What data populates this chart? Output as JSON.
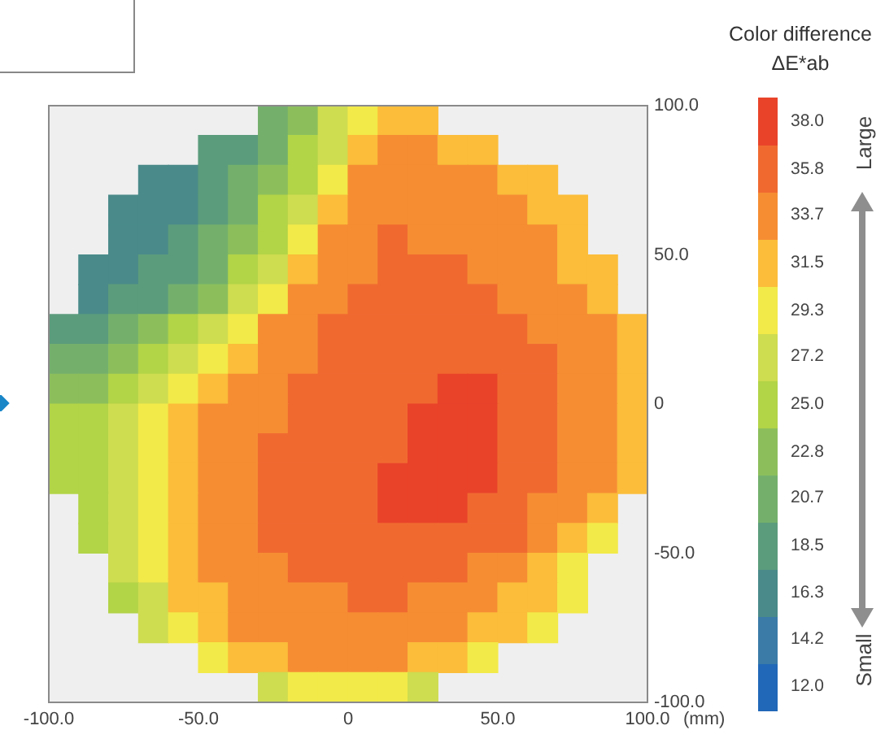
{
  "chart_data": {
    "type": "scatter",
    "title": "Color difference",
    "clabel": "ΔE*ab",
    "xlabel": "(mm)",
    "marker": "square",
    "series": [
      {
        "x": [
          -25,
          -15,
          -5,
          5,
          15,
          25,
          -45,
          -35,
          -25,
          -15,
          -5,
          5,
          15,
          25,
          35,
          45,
          -65,
          -55,
          -45,
          -35,
          -25,
          -15,
          -5,
          5,
          15,
          25,
          35,
          45,
          55,
          65,
          -75,
          -65,
          -55,
          -45,
          -35,
          -25,
          -15,
          -5,
          5,
          15,
          25,
          35,
          45,
          55,
          65,
          75,
          -75,
          -65,
          -55,
          -45,
          -35,
          -25,
          -15,
          -5,
          5,
          15,
          25,
          35,
          45,
          55,
          65,
          75,
          -85,
          -75,
          -65,
          -55,
          -45,
          -35,
          -25,
          -15,
          -5,
          5,
          15,
          25,
          35,
          45,
          55,
          65,
          75,
          85,
          -85,
          -75,
          -65,
          -55,
          -45,
          -35,
          -25,
          -15,
          -5,
          5,
          15,
          25,
          35,
          45,
          55,
          65,
          75,
          85,
          -95,
          -85,
          -75,
          -65,
          -55,
          -45,
          -35,
          -25,
          -15,
          -5,
          5,
          15,
          25,
          35,
          45,
          55,
          65,
          75,
          85,
          95,
          -95,
          -85,
          -75,
          -65,
          -55,
          -45,
          -35,
          -25,
          -15,
          -5,
          5,
          15,
          25,
          35,
          45,
          55,
          65,
          75,
          85,
          95,
          -95,
          -85,
          -75,
          -65,
          -55,
          -45,
          -35,
          -25,
          -15,
          -5,
          5,
          15,
          25,
          35,
          45,
          55,
          65,
          75,
          85,
          95,
          -95,
          -85,
          -75,
          -65,
          -55,
          -45,
          -35,
          -25,
          -15,
          -5,
          5,
          15,
          25,
          35,
          45,
          55,
          65,
          75,
          85,
          95,
          -95,
          -85,
          -75,
          -65,
          -55,
          -45,
          -35,
          -25,
          -15,
          -5,
          5,
          15,
          25,
          35,
          45,
          55,
          65,
          75,
          85,
          95,
          -95,
          -85,
          -75,
          -65,
          -55,
          -45,
          -35,
          -25,
          -15,
          -5,
          5,
          15,
          25,
          35,
          45,
          55,
          65,
          75,
          85,
          95,
          -85,
          -75,
          -65,
          -55,
          -45,
          -35,
          -25,
          -15,
          -5,
          5,
          15,
          25,
          35,
          45,
          55,
          65,
          75,
          85,
          -85,
          -75,
          -65,
          -55,
          -45,
          -35,
          -25,
          -15,
          -5,
          5,
          15,
          25,
          35,
          45,
          55,
          65,
          75,
          85,
          -75,
          -65,
          -55,
          -45,
          -35,
          -25,
          -15,
          -5,
          5,
          15,
          25,
          35,
          45,
          55,
          65,
          75,
          -75,
          -65,
          -55,
          -45,
          -35,
          -25,
          -15,
          -5,
          5,
          15,
          25,
          35,
          45,
          55,
          65,
          75,
          -65,
          -55,
          -45,
          -35,
          -25,
          -15,
          -5,
          5,
          15,
          25,
          35,
          45,
          55,
          65,
          -45,
          -35,
          -25,
          -15,
          -5,
          5,
          15,
          25,
          35,
          45,
          -25,
          -15,
          -5,
          5,
          15,
          25
        ],
        "values": [
          95,
          95,
          95,
          95,
          95,
          95,
          85,
          85,
          85,
          85,
          85,
          85,
          85,
          85,
          85,
          85,
          75,
          75,
          75,
          75,
          75,
          75,
          75,
          75,
          75,
          75,
          75,
          75,
          75,
          75,
          65,
          65,
          65,
          65,
          65,
          65,
          65,
          65,
          65,
          65,
          65,
          65,
          65,
          65,
          65,
          65,
          55,
          55,
          55,
          55,
          55,
          55,
          55,
          55,
          55,
          55,
          55,
          55,
          55,
          55,
          55,
          55,
          45,
          45,
          45,
          45,
          45,
          45,
          45,
          45,
          45,
          45,
          45,
          45,
          45,
          45,
          45,
          45,
          45,
          45,
          35,
          35,
          35,
          35,
          35,
          35,
          35,
          35,
          35,
          35,
          35,
          35,
          35,
          35,
          35,
          35,
          35,
          35,
          25,
          25,
          25,
          25,
          25,
          25,
          25,
          25,
          25,
          25,
          25,
          25,
          25,
          25,
          25,
          25,
          25,
          25,
          25,
          25,
          15,
          15,
          15,
          15,
          15,
          15,
          15,
          15,
          15,
          15,
          15,
          15,
          15,
          15,
          15,
          15,
          15,
          15,
          15,
          15,
          5,
          5,
          5,
          5,
          5,
          5,
          5,
          5,
          5,
          5,
          5,
          5,
          5,
          5,
          5,
          5,
          5,
          5,
          5,
          5,
          -5,
          -5,
          -5,
          -5,
          -5,
          -5,
          -5,
          -5,
          -5,
          -5,
          -5,
          -5,
          -5,
          -5,
          -5,
          -5,
          -5,
          -5,
          -5,
          -5,
          -15,
          -15,
          -15,
          -15,
          -15,
          -15,
          -15,
          -15,
          -15,
          -15,
          -15,
          -15,
          -15,
          -15,
          -15,
          -15,
          -15,
          -15,
          -15,
          -15,
          -25,
          -25,
          -25,
          -25,
          -25,
          -25,
          -25,
          -25,
          -25,
          -25,
          -25,
          -25,
          -25,
          -25,
          -25,
          -25,
          -25,
          -25,
          -25,
          -25,
          -35,
          -35,
          -35,
          -35,
          -35,
          -35,
          -35,
          -35,
          -35,
          -35,
          -35,
          -35,
          -35,
          -35,
          -35,
          -35,
          -35,
          -35,
          -45,
          -45,
          -45,
          -45,
          -45,
          -45,
          -45,
          -45,
          -45,
          -45,
          -45,
          -45,
          -45,
          -45,
          -45,
          -45,
          -45,
          -45,
          -55,
          -55,
          -55,
          -55,
          -55,
          -55,
          -55,
          -55,
          -55,
          -55,
          -55,
          -55,
          -55,
          -55,
          -55,
          -55,
          -65,
          -65,
          -65,
          -65,
          -65,
          -65,
          -65,
          -65,
          -65,
          -65,
          -65,
          -65,
          -65,
          -65,
          -65,
          -65,
          -75,
          -75,
          -75,
          -75,
          -75,
          -75,
          -75,
          -75,
          -75,
          -75,
          -75,
          -75,
          -75,
          -75,
          -85,
          -85,
          -85,
          -85,
          -85,
          -85,
          -85,
          -85,
          -85,
          -85,
          -95,
          -95,
          -95,
          -95,
          -95,
          -95
        ],
        "cvalues": [
          21,
          23,
          27,
          29,
          31,
          32,
          18,
          19,
          21,
          24,
          27,
          31,
          33,
          33,
          32,
          32,
          17,
          17,
          18,
          20,
          22,
          25,
          29,
          33,
          33,
          34,
          33,
          33,
          32,
          31,
          16,
          16,
          17,
          19,
          21,
          24,
          28,
          32,
          34,
          34,
          34,
          34,
          33,
          33,
          32,
          31,
          16,
          17,
          18,
          20,
          22,
          26,
          30,
          33,
          34,
          35,
          34,
          34,
          34,
          33,
          33,
          31,
          16,
          17,
          18,
          19,
          21,
          24,
          28,
          32,
          34,
          34,
          35,
          35,
          35,
          34,
          34,
          33,
          32,
          31,
          17,
          18,
          19,
          21,
          23,
          27,
          30,
          33,
          34,
          35,
          35,
          35,
          35,
          35,
          34,
          34,
          33,
          32,
          18,
          19,
          20,
          22,
          24,
          27,
          30,
          33,
          34,
          35,
          35,
          35,
          36,
          36,
          35,
          35,
          34,
          33,
          33,
          31,
          20,
          21,
          22,
          24,
          27,
          29,
          32,
          33,
          34,
          35,
          35,
          36,
          36,
          36,
          36,
          35,
          35,
          34,
          33,
          31,
          22,
          23,
          25,
          27,
          29,
          31,
          33,
          34,
          35,
          35,
          36,
          36,
          36,
          37,
          37,
          36,
          35,
          34,
          33,
          32,
          24,
          25,
          27,
          29,
          31,
          33,
          34,
          34,
          35,
          35,
          36,
          36,
          37,
          37,
          37,
          36,
          35,
          34,
          33,
          32,
          25,
          26,
          28,
          30,
          32,
          33,
          34,
          35,
          35,
          36,
          36,
          36,
          37,
          37,
          37,
          36,
          35,
          34,
          33,
          31,
          25,
          26,
          28,
          30,
          32,
          33,
          34,
          35,
          35,
          36,
          36,
          37,
          37,
          38,
          37,
          36,
          35,
          34,
          33,
          31,
          26,
          28,
          30,
          32,
          33,
          34,
          35,
          35,
          36,
          36,
          37,
          37,
          37,
          36,
          35,
          34,
          33,
          31,
          26,
          28,
          30,
          32,
          33,
          34,
          35,
          35,
          36,
          36,
          36,
          36,
          36,
          35,
          35,
          34,
          32,
          30,
          27,
          29,
          31,
          33,
          34,
          34,
          35,
          35,
          35,
          36,
          35,
          35,
          34,
          33,
          32,
          30,
          26,
          28,
          31,
          32,
          33,
          34,
          34,
          34,
          35,
          35,
          34,
          34,
          33,
          32,
          31,
          29,
          27,
          30,
          32,
          33,
          33,
          34,
          34,
          34,
          34,
          33,
          33,
          32,
          31,
          29,
          29,
          31,
          32,
          33,
          33,
          33,
          33,
          32,
          31,
          30,
          28,
          29,
          30,
          30,
          29,
          28
        ]
      }
    ],
    "xlim": [
      -100,
      100
    ],
    "ylim": [
      -100,
      100
    ],
    "xticks": [
      {
        "value": -100,
        "label": "-100.0"
      },
      {
        "value": -50,
        "label": "-50.0"
      },
      0,
      {
        "value": 50,
        "label": "50.0"
      },
      {
        "value": 100,
        "label": "100.0"
      }
    ],
    "yticks": [
      {
        "value": 100,
        "label": "100.0"
      },
      {
        "value": 50,
        "label": "50.0"
      },
      0,
      {
        "value": -50,
        "label": "-50.0"
      },
      {
        "value": -100,
        "label": "-100.0"
      }
    ],
    "clim": [
      10.9,
      39.1
    ],
    "cticks": [
      {
        "value": 12,
        "label": "12.0"
      },
      14.2,
      16.3,
      18.5,
      20.7,
      22.8,
      {
        "value": 25,
        "label": "25.0"
      },
      27.2,
      29.3,
      31.5,
      33.7,
      35.8,
      {
        "value": 38,
        "label": "38.0"
      }
    ],
    "colors": [
      "#2168b8",
      "#3a7ba8",
      "#4a8a8a",
      "#5b9c7c",
      "#74b06c",
      "#8cbf5c",
      "#b2d447",
      "#cedc50",
      "#f2ea48",
      "#fbbd3a",
      "#f68d33",
      "#f06a30",
      "#e9432a"
    ],
    "annotations": [
      "Large",
      "Small"
    ]
  }
}
